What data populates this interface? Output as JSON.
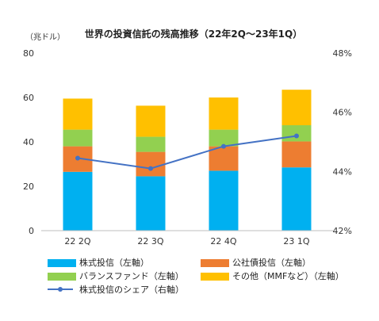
{
  "chart_data": {
    "type": "bar",
    "title": "世界の投資信託の残高推移（22年2Q〜23年1Q）",
    "ylabel": "（兆ドル）",
    "categories": [
      "22 2Q",
      "22 3Q",
      "22 4Q",
      "23 1Q"
    ],
    "ylim": [
      0,
      80
    ],
    "y_ticks": [
      "0",
      "20",
      "40",
      "60",
      "80"
    ],
    "y2lim": [
      42,
      48
    ],
    "y2_ticks": [
      "42%",
      "44%",
      "46%",
      "48%"
    ],
    "stacked": true,
    "series": [
      {
        "name": "株式投信（左軸）",
        "type": "bar",
        "axis": "left",
        "color": "#00B0F0",
        "values": [
          26.5,
          24.5,
          27,
          28.5
        ]
      },
      {
        "name": "公社債投信（左軸）",
        "type": "bar",
        "axis": "left",
        "color": "#ED7D31",
        "values": [
          11.5,
          11,
          11,
          11.7
        ]
      },
      {
        "name": "バランスファンド（左軸）",
        "type": "bar",
        "axis": "left",
        "color": "#92D050",
        "values": [
          7.5,
          6.8,
          7.5,
          7.3
        ]
      },
      {
        "name": "その他（MMFなど）（左軸）",
        "type": "bar",
        "axis": "left",
        "color": "#FFC000",
        "values": [
          14,
          14,
          14.5,
          16
        ]
      },
      {
        "name": "株式投信のシェア（右軸）",
        "type": "line",
        "axis": "right",
        "color": "#4472C4",
        "values": [
          44.45,
          44.1,
          44.85,
          45.2
        ]
      }
    ],
    "grid": false,
    "legend_position": "bottom"
  }
}
